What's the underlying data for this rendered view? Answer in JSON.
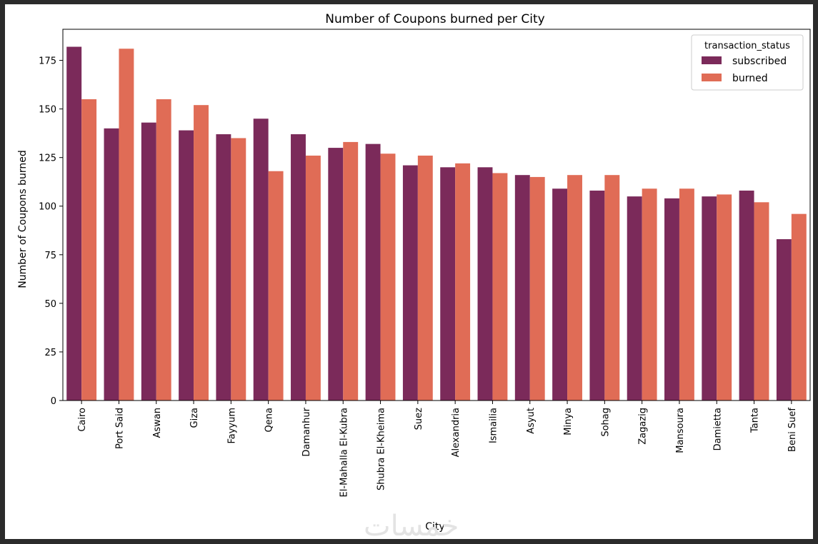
{
  "watermark": "خمسات",
  "chart_data": {
    "type": "bar",
    "title": "Number of Coupons burned per City",
    "xlabel": "City",
    "ylabel": "Number of Coupons burned",
    "ylim": [
      0,
      191
    ],
    "yticks": [
      0,
      25,
      50,
      75,
      100,
      125,
      150,
      175
    ],
    "grid": false,
    "legend_title": "transaction_status",
    "legend_position": "top-right",
    "categories": [
      "Cairo",
      "Port Said",
      "Aswan",
      "Giza",
      "Fayyum",
      "Qena",
      "Damanhur",
      "El-Mahalla El-Kubra",
      "Shubra El-Kheima",
      "Suez",
      "Alexandria",
      "Ismailia",
      "Asyut",
      "Minya",
      "Sohag",
      "Zagazig",
      "Mansoura",
      "Damietta",
      "Tanta",
      "Beni Suef"
    ],
    "series": [
      {
        "name": "subscribed",
        "color": "#7b2a5a",
        "values": [
          182,
          140,
          143,
          139,
          137,
          145,
          137,
          130,
          132,
          121,
          120,
          120,
          116,
          109,
          108,
          105,
          104,
          105,
          108,
          83
        ]
      },
      {
        "name": "burned",
        "color": "#e06c56",
        "values": [
          155,
          181,
          155,
          152,
          135,
          118,
          126,
          133,
          127,
          126,
          122,
          117,
          115,
          116,
          116,
          109,
          109,
          106,
          102,
          96
        ]
      }
    ]
  }
}
